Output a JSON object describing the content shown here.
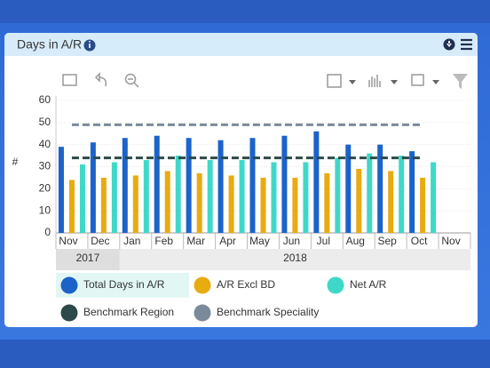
{
  "header": {
    "title": "Days in A/R"
  },
  "chart_data": {
    "type": "bar",
    "y_label": "#",
    "categories": [
      "Nov",
      "Dec",
      "Jan",
      "Feb",
      "Mar",
      "Apr",
      "May",
      "Jun",
      "Jul",
      "Aug",
      "Sep",
      "Oct",
      "Nov"
    ],
    "year_groups": [
      {
        "label": "2017",
        "count": 2
      },
      {
        "label": "2018",
        "count": 11
      }
    ],
    "ylim": [
      0,
      60
    ],
    "yticks": [
      0,
      10,
      20,
      30,
      40,
      50,
      60
    ],
    "series": [
      {
        "name": "Total Days in A/R",
        "color": "#1c63c9",
        "values": [
          39,
          41,
          43,
          44,
          43,
          42,
          43,
          44,
          46,
          40,
          40,
          37,
          null
        ]
      },
      {
        "name": "A/R Excl BD",
        "color": "#e8ab10",
        "values": [
          24,
          25,
          26,
          28,
          27,
          26,
          25,
          25,
          27,
          29,
          28,
          25,
          null
        ]
      },
      {
        "name": "Net A/R",
        "color": "#3fd8c8",
        "values": [
          31,
          32,
          33,
          35,
          33,
          33,
          32,
          32,
          34,
          36,
          35,
          32,
          null
        ]
      }
    ],
    "benchmarks": [
      {
        "name": "Benchmark Region",
        "color": "#2b4a48",
        "values": [
          34,
          34,
          34,
          34,
          34,
          34,
          34,
          34,
          34,
          34,
          34,
          34,
          null
        ]
      },
      {
        "name": "Benchmark Speciality",
        "color": "#7b8a9b",
        "values": [
          49,
          49,
          49,
          49,
          49,
          49,
          49,
          49,
          49,
          49,
          49,
          49,
          null
        ]
      }
    ]
  }
}
